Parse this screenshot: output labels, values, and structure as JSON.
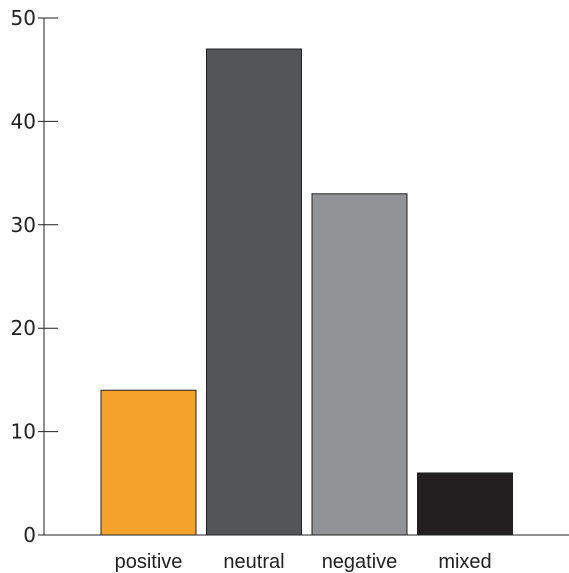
{
  "chart_data": {
    "type": "bar",
    "title": "",
    "xlabel": "",
    "ylabel": "",
    "categories": [
      "positive",
      "neutral",
      "negative",
      "mixed"
    ],
    "values": [
      14,
      47,
      33,
      6
    ],
    "colors": [
      "#f5a22a",
      "#545557",
      "#929396",
      "#231f20"
    ],
    "ylim": [
      0,
      50
    ],
    "yticks": [
      0,
      10,
      20,
      30,
      40,
      50
    ],
    "ytick_labels": [
      "0",
      "10",
      "20",
      "30",
      "40",
      "50"
    ],
    "grid": false,
    "legend": "none"
  }
}
